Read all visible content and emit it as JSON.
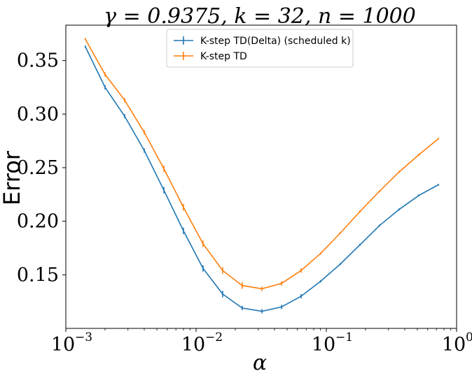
{
  "chart_data": {
    "type": "line",
    "title": "γ = 0.9375, k = 32, n = 1000",
    "xlabel": "α",
    "ylabel": "Error",
    "x_scale": "log",
    "xlim": [
      0.001,
      1.0
    ],
    "ylim": [
      0.1,
      0.383
    ],
    "x_ticks": [
      {
        "value": 0.001,
        "base": "10",
        "exp": "−3"
      },
      {
        "value": 0.01,
        "base": "10",
        "exp": "−2"
      },
      {
        "value": 0.1,
        "base": "10",
        "exp": "−1"
      },
      {
        "value": 1.0,
        "base": "10",
        "exp": "0"
      }
    ],
    "y_ticks": [
      {
        "value": 0.15,
        "label": "0.15"
      },
      {
        "value": 0.2,
        "label": "0.20"
      },
      {
        "value": 0.25,
        "label": "0.25"
      },
      {
        "value": 0.3,
        "label": "0.30"
      },
      {
        "value": 0.35,
        "label": "0.35"
      }
    ],
    "grid": false,
    "legend_position": "top-center",
    "x": [
      0.00141,
      0.002,
      0.00283,
      0.004,
      0.00566,
      0.008,
      0.0113,
      0.016,
      0.0226,
      0.032,
      0.0453,
      0.064,
      0.0905,
      0.128,
      0.181,
      0.256,
      0.362,
      0.512,
      0.724
    ],
    "series": [
      {
        "name": "K-step TD(Delta) (scheduled k)",
        "color": "#1f77b4",
        "values": [
          0.363,
          0.325,
          0.298,
          0.266,
          0.229,
          0.191,
          0.156,
          0.132,
          0.119,
          0.116,
          0.12,
          0.13,
          0.144,
          0.16,
          0.178,
          0.196,
          0.211,
          0.224,
          0.234
        ],
        "error": [
          0.001,
          0.002,
          0.002,
          0.002,
          0.003,
          0.003,
          0.003,
          0.003,
          0.002,
          0.002,
          0.002,
          0.002,
          0.001,
          0.001,
          0.001,
          0.001,
          0.001,
          0.001,
          0.001
        ]
      },
      {
        "name": "K-step TD",
        "color": "#ff7f0e",
        "values": [
          0.37,
          0.337,
          0.313,
          0.283,
          0.249,
          0.213,
          0.179,
          0.154,
          0.14,
          0.137,
          0.142,
          0.154,
          0.17,
          0.189,
          0.209,
          0.228,
          0.246,
          0.262,
          0.277
        ],
        "error": [
          0.001,
          0.002,
          0.002,
          0.002,
          0.003,
          0.003,
          0.003,
          0.003,
          0.003,
          0.002,
          0.002,
          0.002,
          0.001,
          0.001,
          0.001,
          0.001,
          0.001,
          0.001,
          0.001
        ]
      }
    ]
  }
}
